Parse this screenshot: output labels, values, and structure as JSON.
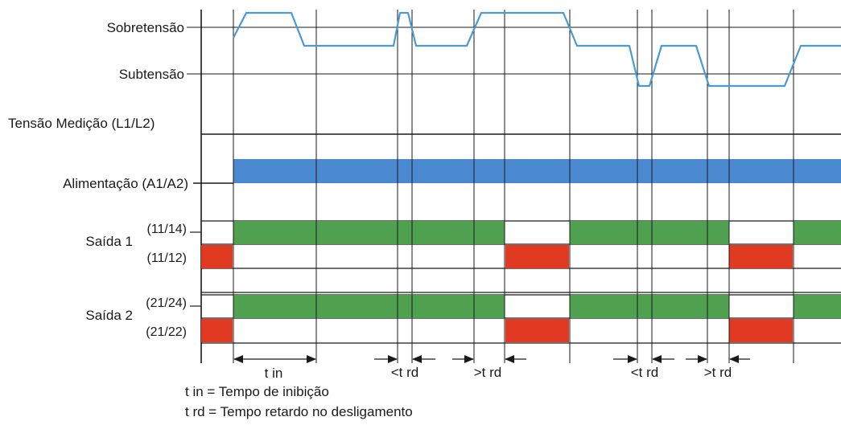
{
  "labels": {
    "overvoltage": "Sobretensão",
    "undervoltage": "Subtensão",
    "measurement": "Tensão Medição (L1/L2)",
    "supply": "Alimentação (A1/A2)",
    "output1": "Saída 1",
    "output1_no": "(11/14)",
    "output1_nc": "(11/12)",
    "output2": "Saída 2",
    "output2_no": "(21/24)",
    "output2_nc": "(21/22)"
  },
  "timing": {
    "t_in": "t in",
    "t_rd_under_1": "<t rd",
    "t_rd_over_1": ">t rd",
    "t_rd_under_2": "<t rd",
    "t_rd_over_2": ">t rd"
  },
  "legend": {
    "line1": "t in = Tempo de inibição",
    "line2": "t rd = Tempo retardo no desligamento"
  },
  "colors": {
    "voltage_trace": "#4a9ad6",
    "supply_bar": "#4a88d0",
    "relay_on": "#4fa150",
    "relay_nc": "#e03a22",
    "lines": "#1a1a1a"
  }
}
